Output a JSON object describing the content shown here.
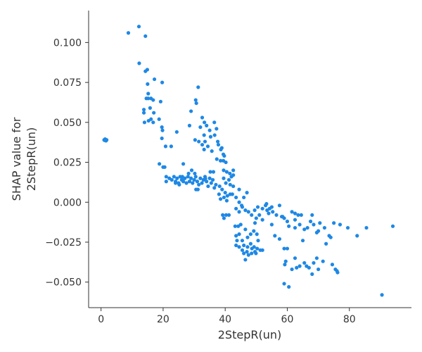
{
  "chart_data": {
    "type": "scatter",
    "title": "",
    "xlabel": "2StepR(un)",
    "ylabel_lines": [
      "SHAP value for",
      "2StepR(un)"
    ],
    "xlim": [
      -4,
      100
    ],
    "ylim": [
      -0.066,
      0.12
    ],
    "x_ticks": [
      0,
      20,
      40,
      60,
      80
    ],
    "x_tick_labels": [
      "0",
      "20",
      "40",
      "60",
      "80"
    ],
    "y_ticks": [
      0.1,
      0.075,
      0.05,
      0.025,
      0.0,
      -0.025,
      -0.05
    ],
    "y_tick_labels": [
      "0.100",
      "0.075",
      "0.050",
      "0.025",
      "0.000",
      "−0.025",
      "−0.050"
    ],
    "grid": false,
    "point_color": "#1e88e5",
    "points": [
      [
        1.0,
        0.039
      ],
      [
        1.3,
        0.0395
      ],
      [
        1.6,
        0.0385
      ],
      [
        1.8,
        0.039
      ],
      [
        1.2,
        0.0388
      ],
      [
        8.8,
        0.106
      ],
      [
        12.2,
        0.11
      ],
      [
        14.3,
        0.104
      ],
      [
        12.3,
        0.087
      ],
      [
        14.3,
        0.082
      ],
      [
        14.9,
        0.083
      ],
      [
        17.2,
        0.077
      ],
      [
        19.7,
        0.075
      ],
      [
        15.0,
        0.074
      ],
      [
        15.2,
        0.068
      ],
      [
        15.2,
        0.065
      ],
      [
        16.1,
        0.065
      ],
      [
        14.6,
        0.065
      ],
      [
        16.8,
        0.064
      ],
      [
        19.2,
        0.063
      ],
      [
        13.8,
        0.058
      ],
      [
        15.8,
        0.059
      ],
      [
        13.8,
        0.056
      ],
      [
        17.0,
        0.056
      ],
      [
        16.1,
        0.052
      ],
      [
        18.7,
        0.052
      ],
      [
        14.0,
        0.05
      ],
      [
        15.3,
        0.051
      ],
      [
        16.8,
        0.05
      ],
      [
        19.6,
        0.047
      ],
      [
        19.8,
        0.045
      ],
      [
        19.6,
        0.04
      ],
      [
        20.8,
        0.035
      ],
      [
        22.6,
        0.035
      ],
      [
        24.4,
        0.044
      ],
      [
        18.8,
        0.024
      ],
      [
        20.0,
        0.022
      ],
      [
        20.5,
        0.022
      ],
      [
        26.5,
        0.024
      ],
      [
        21.0,
        0.016
      ],
      [
        21.0,
        0.013
      ],
      [
        22.0,
        0.015
      ],
      [
        22.8,
        0.014
      ],
      [
        23.5,
        0.016
      ],
      [
        24.0,
        0.013
      ],
      [
        24.5,
        0.015
      ],
      [
        25.0,
        0.012
      ],
      [
        25.5,
        0.016
      ],
      [
        26.0,
        0.014
      ],
      [
        26.5,
        0.013
      ],
      [
        27.0,
        0.015
      ],
      [
        27.5,
        0.012
      ],
      [
        28.0,
        0.016
      ],
      [
        28.5,
        0.013
      ],
      [
        29.0,
        0.015
      ],
      [
        29.5,
        0.012
      ],
      [
        30.0,
        0.014
      ],
      [
        30.5,
        0.016
      ],
      [
        31.0,
        0.013
      ],
      [
        31.5,
        0.011
      ],
      [
        32.0,
        0.015
      ],
      [
        32.5,
        0.012
      ],
      [
        33.0,
        0.014
      ],
      [
        33.5,
        0.016
      ],
      [
        34.0,
        0.013
      ],
      [
        34.5,
        0.01
      ],
      [
        35.0,
        0.015
      ],
      [
        35.5,
        0.012
      ],
      [
        36.0,
        0.014
      ],
      [
        36.5,
        0.009
      ],
      [
        37.0,
        0.011
      ],
      [
        24.0,
        0.012
      ],
      [
        25.2,
        0.011
      ],
      [
        26.2,
        0.016
      ],
      [
        28.2,
        0.018
      ],
      [
        29.2,
        0.02
      ],
      [
        30.2,
        0.018
      ],
      [
        31.2,
        0.008
      ],
      [
        30.6,
        0.008
      ],
      [
        33.6,
        0.015
      ],
      [
        35.2,
        0.019
      ],
      [
        36.2,
        0.019
      ],
      [
        29.0,
        0.057
      ],
      [
        30.5,
        0.064
      ],
      [
        30.7,
        0.062
      ],
      [
        31.3,
        0.072
      ],
      [
        32.0,
        0.047
      ],
      [
        32.6,
        0.053
      ],
      [
        33.3,
        0.05
      ],
      [
        34.0,
        0.048
      ],
      [
        35.0,
        0.045
      ],
      [
        36.5,
        0.05
      ],
      [
        37.2,
        0.046
      ],
      [
        36.6,
        0.042
      ],
      [
        35.3,
        0.041
      ],
      [
        33.2,
        0.042
      ],
      [
        33.5,
        0.038
      ],
      [
        34.4,
        0.035
      ],
      [
        35.7,
        0.032
      ],
      [
        33.2,
        0.033
      ],
      [
        32.6,
        0.036
      ],
      [
        31.5,
        0.038
      ],
      [
        30.3,
        0.039
      ],
      [
        28.5,
        0.048
      ],
      [
        37.6,
        0.038
      ],
      [
        37.8,
        0.036
      ],
      [
        38.6,
        0.033
      ],
      [
        38.9,
        0.034
      ],
      [
        39.4,
        0.03
      ],
      [
        37.3,
        0.027
      ],
      [
        38.5,
        0.026
      ],
      [
        39.7,
        0.029
      ],
      [
        39.4,
        0.026
      ],
      [
        40.2,
        0.025
      ],
      [
        39.5,
        0.02
      ],
      [
        40.5,
        0.019
      ],
      [
        41.5,
        0.018
      ],
      [
        42.6,
        0.017
      ],
      [
        42.6,
        0.02
      ],
      [
        39.5,
        0.015
      ],
      [
        40.2,
        0.012
      ],
      [
        41.2,
        0.014
      ],
      [
        41.6,
        0.011
      ],
      [
        42.0,
        0.016
      ],
      [
        42.6,
        0.01
      ],
      [
        38.2,
        0.01
      ],
      [
        39.0,
        0.008
      ],
      [
        40.0,
        0.006
      ],
      [
        40.7,
        0.004
      ],
      [
        41.6,
        0.005
      ],
      [
        38.0,
        0.005
      ],
      [
        38.5,
        0.002
      ],
      [
        39.6,
        0.003
      ],
      [
        40.5,
        0.001
      ],
      [
        42.3,
        0.005
      ],
      [
        44.5,
        0.008
      ],
      [
        46.0,
        0.003
      ],
      [
        43.5,
        0.003
      ],
      [
        44.5,
        0.0
      ],
      [
        45.5,
        -0.003
      ],
      [
        46.5,
        -0.005
      ],
      [
        47.5,
        -0.006
      ],
      [
        48.5,
        -0.008
      ],
      [
        49.5,
        -0.005
      ],
      [
        50.5,
        -0.003
      ],
      [
        43.5,
        -0.004
      ],
      [
        44.5,
        -0.006
      ],
      [
        45.3,
        -0.002
      ],
      [
        47.0,
        0.006
      ],
      [
        39.2,
        -0.008
      ],
      [
        40.3,
        -0.008
      ],
      [
        39.6,
        -0.01
      ],
      [
        41.2,
        -0.008
      ],
      [
        43.2,
        -0.015
      ],
      [
        44.2,
        -0.015
      ],
      [
        45.0,
        -0.014
      ],
      [
        43.5,
        -0.021
      ],
      [
        44.5,
        -0.02
      ],
      [
        43.8,
        -0.024
      ],
      [
        45.5,
        -0.024
      ],
      [
        43.5,
        -0.027
      ],
      [
        44.5,
        -0.028
      ],
      [
        46.0,
        -0.027
      ],
      [
        46.5,
        -0.017
      ],
      [
        47.2,
        -0.022
      ],
      [
        48.2,
        -0.02
      ],
      [
        49.2,
        -0.018
      ],
      [
        49.6,
        -0.013
      ],
      [
        50.2,
        -0.02
      ],
      [
        50.6,
        -0.024
      ],
      [
        51.3,
        -0.03
      ],
      [
        52.0,
        -0.03
      ],
      [
        48.2,
        -0.026
      ],
      [
        47.2,
        -0.028
      ],
      [
        47.0,
        -0.031
      ],
      [
        47.5,
        -0.033
      ],
      [
        48.5,
        -0.032
      ],
      [
        48.6,
        -0.029
      ],
      [
        49.6,
        -0.031
      ],
      [
        49.3,
        -0.028
      ],
      [
        50.3,
        -0.029
      ],
      [
        49.9,
        -0.032
      ],
      [
        46.0,
        -0.032
      ],
      [
        46.5,
        -0.036
      ],
      [
        45.5,
        -0.03
      ],
      [
        50.0,
        -0.01
      ],
      [
        51.0,
        -0.008
      ],
      [
        52.0,
        -0.004
      ],
      [
        53.0,
        -0.002
      ],
      [
        53.5,
        -0.005
      ],
      [
        54.0,
        -0.007
      ],
      [
        55.0,
        -0.003
      ],
      [
        53.3,
        -0.001
      ],
      [
        54.3,
        -0.004
      ],
      [
        55.3,
        -0.006
      ],
      [
        56.5,
        -0.008
      ],
      [
        57.5,
        -0.002
      ],
      [
        52.0,
        -0.011
      ],
      [
        56.0,
        -0.021
      ],
      [
        57.5,
        -0.023
      ],
      [
        55.0,
        -0.014
      ],
      [
        58.5,
        -0.009
      ],
      [
        59.0,
        -0.01
      ],
      [
        60.0,
        -0.012
      ],
      [
        60.5,
        -0.015
      ],
      [
        61.5,
        -0.006
      ],
      [
        62.5,
        -0.007
      ],
      [
        62.5,
        -0.011
      ],
      [
        62.5,
        -0.016
      ],
      [
        64.0,
        -0.014
      ],
      [
        64.5,
        -0.008
      ],
      [
        65.5,
        -0.017
      ],
      [
        66.5,
        -0.016
      ],
      [
        67.5,
        -0.012
      ],
      [
        68.5,
        -0.014
      ],
      [
        68.0,
        -0.008
      ],
      [
        69.5,
        -0.019
      ],
      [
        70.0,
        -0.018
      ],
      [
        70.5,
        -0.013
      ],
      [
        72.0,
        -0.016
      ],
      [
        73.5,
        -0.021
      ],
      [
        75.0,
        -0.013
      ],
      [
        77.0,
        -0.014
      ],
      [
        79.5,
        -0.016
      ],
      [
        82.5,
        -0.021
      ],
      [
        85.5,
        -0.016
      ],
      [
        94.0,
        -0.015
      ],
      [
        63.5,
        -0.008
      ],
      [
        58.2,
        -0.009
      ],
      [
        59.0,
        -0.029
      ],
      [
        59.5,
        -0.037
      ],
      [
        59.2,
        -0.039
      ],
      [
        60.0,
        -0.029
      ],
      [
        61.5,
        -0.042
      ],
      [
        62.5,
        -0.035
      ],
      [
        63.0,
        -0.041
      ],
      [
        64.0,
        -0.04
      ],
      [
        65.0,
        -0.024
      ],
      [
        65.5,
        -0.038
      ],
      [
        66.2,
        -0.04
      ],
      [
        67.0,
        -0.041
      ],
      [
        68.0,
        -0.045
      ],
      [
        68.5,
        -0.038
      ],
      [
        69.5,
        -0.035
      ],
      [
        70.0,
        -0.042
      ],
      [
        71.5,
        -0.037
      ],
      [
        72.5,
        -0.026
      ],
      [
        74.0,
        -0.022
      ],
      [
        74.5,
        -0.039
      ],
      [
        75.5,
        -0.042
      ],
      [
        76.0,
        -0.043
      ],
      [
        76.2,
        -0.044
      ],
      [
        59.0,
        -0.051
      ],
      [
        60.5,
        -0.053
      ],
      [
        90.5,
        -0.058
      ]
    ]
  }
}
